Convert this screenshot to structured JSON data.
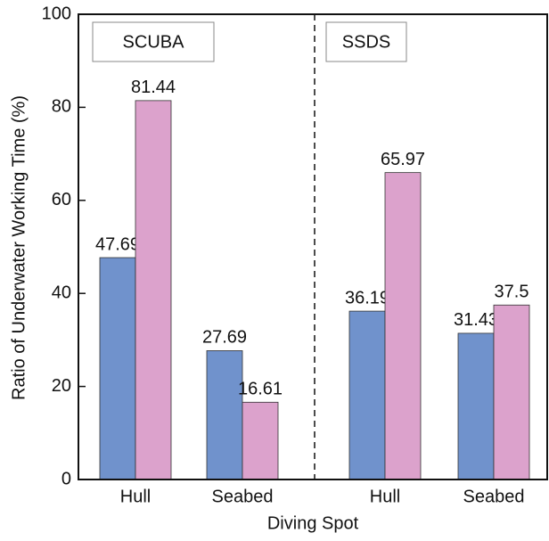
{
  "chart_data": {
    "type": "bar",
    "y_label": "Ratio of Underwater Working Time (%)",
    "x_label": "Diving Spot",
    "annotations": [
      "SCUBA",
      "SSDS"
    ],
    "categories": [
      "Hull",
      "Seabed",
      "Hull",
      "Seabed"
    ],
    "series": [
      {
        "color": "#7092cc",
        "values": [
          47.69,
          27.69,
          36.19,
          31.43
        ]
      },
      {
        "color": "#dca2cc",
        "values": [
          81.44,
          16.61,
          65.97,
          37.5
        ]
      }
    ],
    "ylim": [
      0,
      100
    ],
    "yticks": [
      0,
      20,
      40,
      60,
      80,
      100
    ]
  }
}
